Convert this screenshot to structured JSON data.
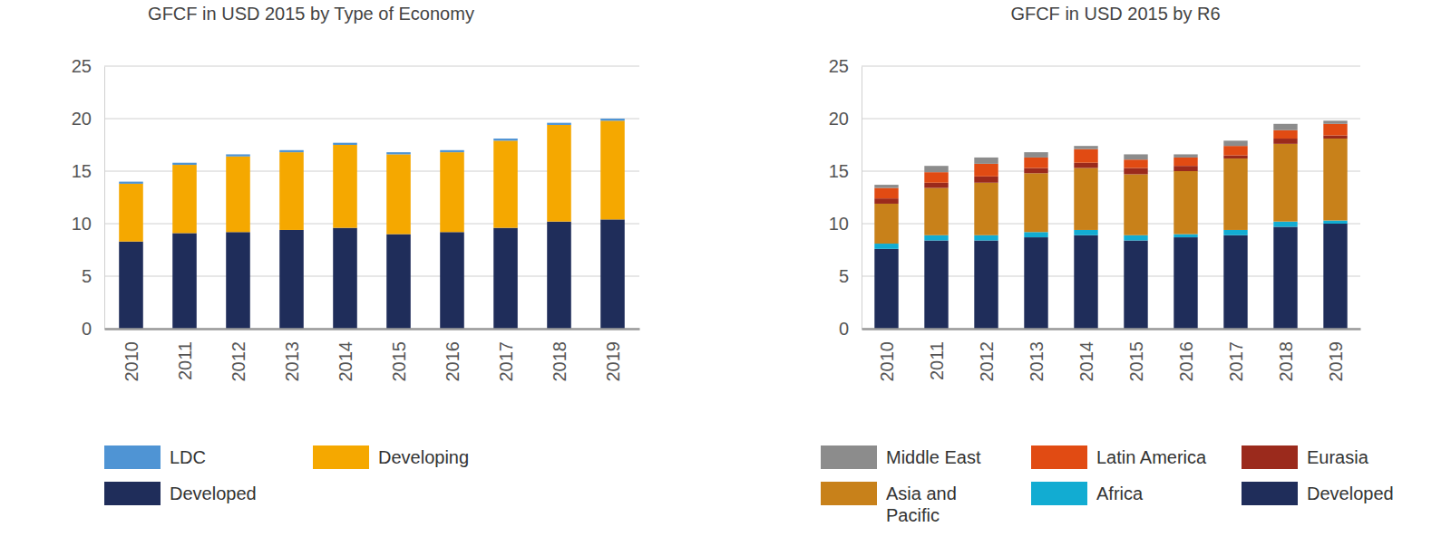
{
  "chart_data": [
    {
      "type": "bar",
      "title": "GFCF in USD 2015 by Type of Economy",
      "categories": [
        "2010",
        "2011",
        "2012",
        "2013",
        "2014",
        "2015",
        "2016",
        "2017",
        "2018",
        "2019"
      ],
      "series": [
        {
          "name": "Developed",
          "color": "#1f2d5a",
          "values": [
            8.3,
            9.1,
            9.2,
            9.4,
            9.6,
            9.0,
            9.2,
            9.6,
            10.2,
            10.4
          ]
        },
        {
          "name": "Developing",
          "color": "#f5a800",
          "values": [
            5.5,
            6.5,
            7.2,
            7.4,
            7.9,
            7.6,
            7.6,
            8.3,
            9.2,
            9.4
          ]
        },
        {
          "name": "LDC",
          "color": "#4f94d4",
          "values": [
            0.2,
            0.2,
            0.2,
            0.2,
            0.2,
            0.2,
            0.2,
            0.2,
            0.2,
            0.2
          ]
        }
      ],
      "ylim": [
        0,
        25
      ],
      "yticks": [
        0,
        5,
        10,
        15,
        20,
        25
      ],
      "stacked": true,
      "grid": true,
      "legend": "bottom"
    },
    {
      "type": "bar",
      "title": "GFCF in USD 2015 by R6",
      "categories": [
        "2010",
        "2011",
        "2012",
        "2013",
        "2014",
        "2015",
        "2016",
        "2017",
        "2018",
        "2019"
      ],
      "series": [
        {
          "name": "Developed",
          "color": "#1f2d5a",
          "values": [
            7.6,
            8.4,
            8.4,
            8.7,
            8.9,
            8.4,
            8.7,
            8.9,
            9.7,
            10.0
          ]
        },
        {
          "name": "Africa",
          "color": "#12acd2",
          "values": [
            0.5,
            0.5,
            0.5,
            0.5,
            0.5,
            0.5,
            0.3,
            0.5,
            0.5,
            0.3
          ]
        },
        {
          "name": "Asia and Pacific",
          "color": "#c8811a",
          "values": [
            3.8,
            4.5,
            5.0,
            5.6,
            5.9,
            5.8,
            6.0,
            6.8,
            7.4,
            7.8
          ]
        },
        {
          "name": "Eurasia",
          "color": "#9b2a1c",
          "values": [
            0.5,
            0.5,
            0.6,
            0.5,
            0.5,
            0.6,
            0.5,
            0.3,
            0.5,
            0.3
          ]
        },
        {
          "name": "Latin America",
          "color": "#e14b13",
          "values": [
            1.0,
            1.0,
            1.2,
            1.0,
            1.3,
            0.8,
            0.8,
            0.9,
            0.8,
            1.1
          ]
        },
        {
          "name": "Middle East",
          "color": "#8c8c8c",
          "values": [
            0.3,
            0.6,
            0.6,
            0.5,
            0.3,
            0.5,
            0.3,
            0.5,
            0.6,
            0.3
          ]
        }
      ],
      "ylim": [
        0,
        25
      ],
      "yticks": [
        0,
        5,
        10,
        15,
        20,
        25
      ],
      "stacked": true,
      "grid": true,
      "legend": "bottom"
    }
  ]
}
